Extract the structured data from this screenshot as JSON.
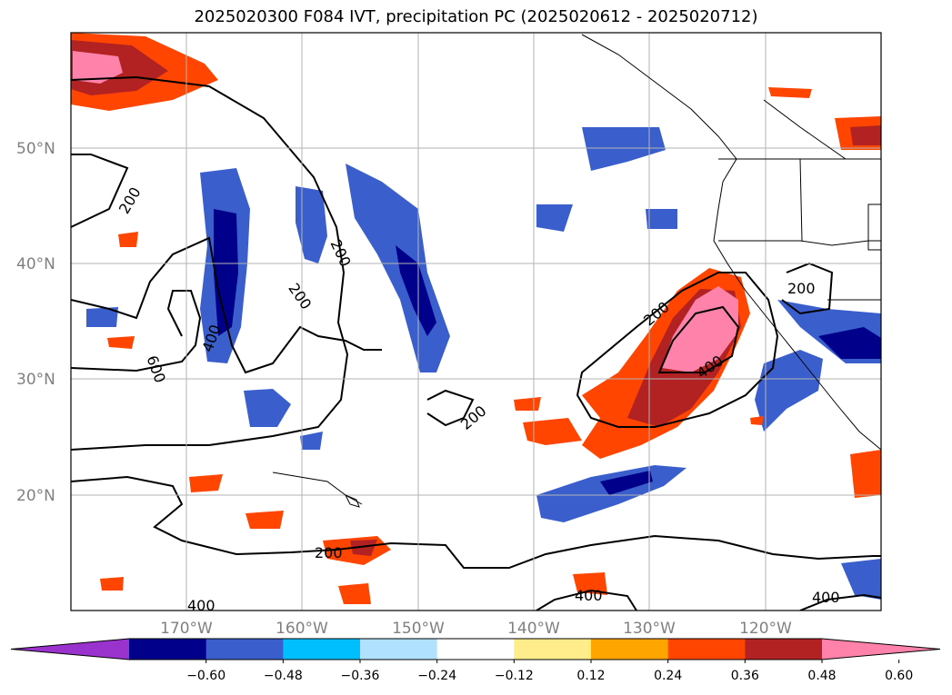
{
  "title": "2025020300 F084 IVT, precipitation PC (2025020612 - 2025020712)",
  "map": {
    "lat_labels": [
      "50°N",
      "40°N",
      "30°N",
      "20°N"
    ],
    "lon_labels": [
      "170°W",
      "160°W",
      "150°W",
      "140°W",
      "130°W",
      "120°W"
    ],
    "contour_labels": [
      "200",
      "200",
      "200",
      "200",
      "200",
      "200",
      "200",
      "400",
      "400",
      "400",
      "400",
      "400",
      "600"
    ]
  },
  "colorbar": {
    "colors": [
      "#9a32cd",
      "#00008b",
      "#3a5fcd",
      "#00bfff",
      "#b0e2ff",
      "#ffffff",
      "#ffec8b",
      "#ffa500",
      "#ff4500",
      "#b22222",
      "#ff82ab"
    ],
    "ticks": [
      "−0.60",
      "−0.48",
      "−0.36",
      "−0.24",
      "−0.12",
      "0.12",
      "0.24",
      "0.36",
      "0.48",
      "0.60"
    ]
  }
}
